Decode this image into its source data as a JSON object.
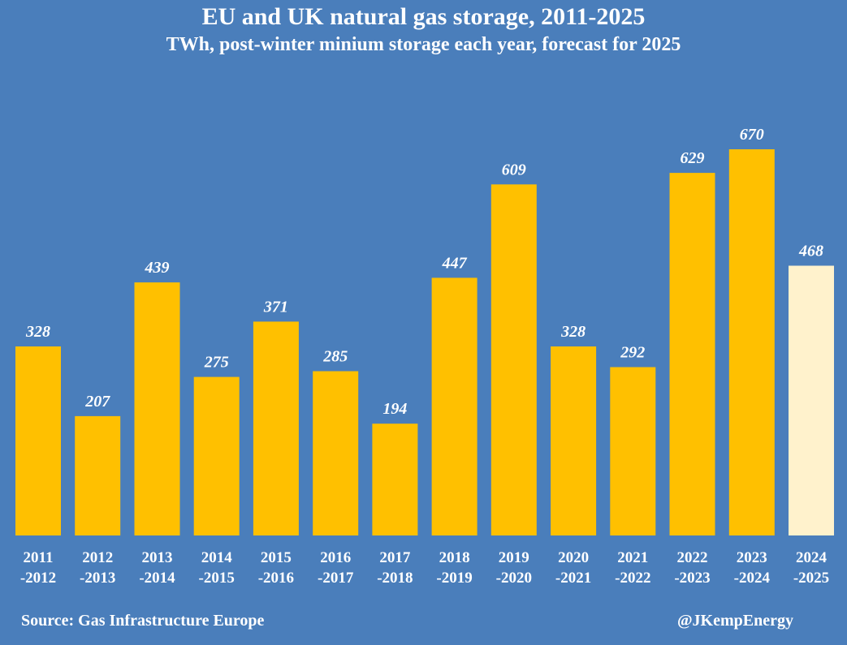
{
  "chart_data": {
    "type": "bar",
    "title": "EU and UK natural gas storage, 2011-2025",
    "subtitle": "TWh, post-winter minium storage each year, forecast for 2025",
    "categories": [
      [
        "2011",
        "-2012"
      ],
      [
        "2012",
        "-2013"
      ],
      [
        "2013",
        "-2014"
      ],
      [
        "2014",
        "-2015"
      ],
      [
        "2015",
        "-2016"
      ],
      [
        "2016",
        "-2017"
      ],
      [
        "2017",
        "-2018"
      ],
      [
        "2018",
        "-2019"
      ],
      [
        "2019",
        "-2020"
      ],
      [
        "2020",
        "-2021"
      ],
      [
        "2021",
        "-2022"
      ],
      [
        "2022",
        "-2023"
      ],
      [
        "2023",
        "-2024"
      ],
      [
        "2024",
        "-2025"
      ]
    ],
    "values": [
      328,
      207,
      439,
      275,
      371,
      285,
      194,
      447,
      609,
      328,
      292,
      629,
      670,
      468
    ],
    "forecast": [
      false,
      false,
      false,
      false,
      false,
      false,
      false,
      false,
      false,
      false,
      false,
      false,
      false,
      true
    ],
    "ylim": [
      0,
      670
    ],
    "xlabel": "",
    "ylabel": "",
    "colors": {
      "background": "#4a7ebb",
      "bar": "#ffc000",
      "forecast_bar": "#fff2cc",
      "text": "#ffffff"
    }
  },
  "footer": {
    "source": "Source: Gas Infrastructure Europe",
    "credit": "@JKempEnergy"
  }
}
